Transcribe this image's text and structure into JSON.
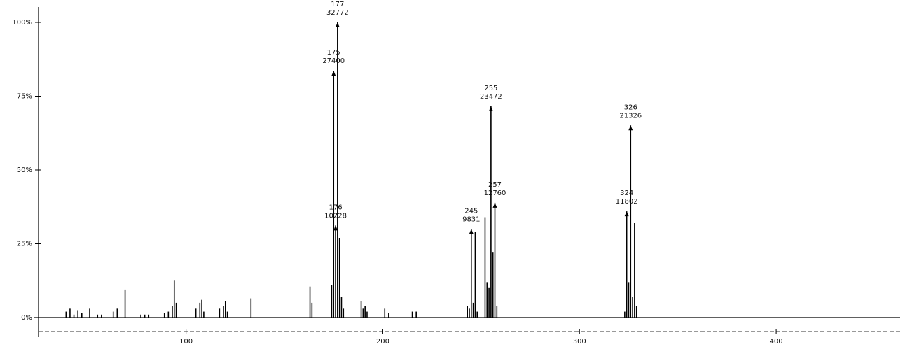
{
  "chart_data": {
    "type": "bar",
    "color": "#000000",
    "xlim": [
      25,
      463
    ],
    "ylim": [
      0,
      100
    ],
    "xticks": [
      100,
      200,
      300,
      400
    ],
    "yticks": [
      {
        "value": 0,
        "label": "0%"
      },
      {
        "value": 25,
        "label": "25%"
      },
      {
        "value": 50,
        "label": "50%"
      },
      {
        "value": 75,
        "label": "75%"
      },
      {
        "value": 100,
        "label": "100%"
      }
    ],
    "x": [
      39,
      41,
      43,
      45,
      47,
      51,
      55,
      57,
      63,
      65,
      69,
      77,
      79,
      81,
      89,
      91,
      93,
      94,
      95,
      105,
      107,
      108,
      109,
      117,
      119,
      120,
      121,
      133,
      163,
      164,
      174,
      175,
      176,
      177,
      178,
      179,
      180,
      189,
      190,
      191,
      192,
      201,
      203,
      215,
      217,
      243,
      244,
      245,
      246,
      247,
      248,
      252,
      253,
      254,
      255,
      256,
      257,
      258,
      323,
      324,
      325,
      326,
      327,
      328,
      329
    ],
    "values": [
      2,
      3,
      1,
      2.5,
      1.5,
      3,
      1,
      1,
      2,
      3,
      9.5,
      1,
      1,
      1,
      1.5,
      2,
      4,
      12.5,
      5,
      3,
      5,
      6,
      2,
      3,
      4,
      5.5,
      2,
      6.5,
      10.5,
      5,
      11,
      83.6,
      31.2,
      100,
      27,
      7,
      3,
      5.5,
      3,
      4,
      2,
      3,
      1.5,
      2,
      2,
      4,
      3,
      30,
      5,
      29,
      2,
      34,
      12,
      10,
      71.6,
      22,
      38.9,
      4,
      2,
      36,
      12,
      65.1,
      7,
      32,
      4
    ],
    "annotations": [
      {
        "mz": 177,
        "intensity": 32772,
        "point": 33
      },
      {
        "mz": 175,
        "intensity": 27400,
        "point": 31
      },
      {
        "mz": 176,
        "intensity": 10228,
        "point": 32
      },
      {
        "mz": 245,
        "intensity": 9831,
        "point": 47
      },
      {
        "mz": 255,
        "intensity": 23472,
        "point": 54
      },
      {
        "mz": 257,
        "intensity": 12760,
        "point": 56
      },
      {
        "mz": 326,
        "intensity": 21326,
        "point": 61
      },
      {
        "mz": 324,
        "intensity": 11802,
        "point": 59
      }
    ]
  }
}
